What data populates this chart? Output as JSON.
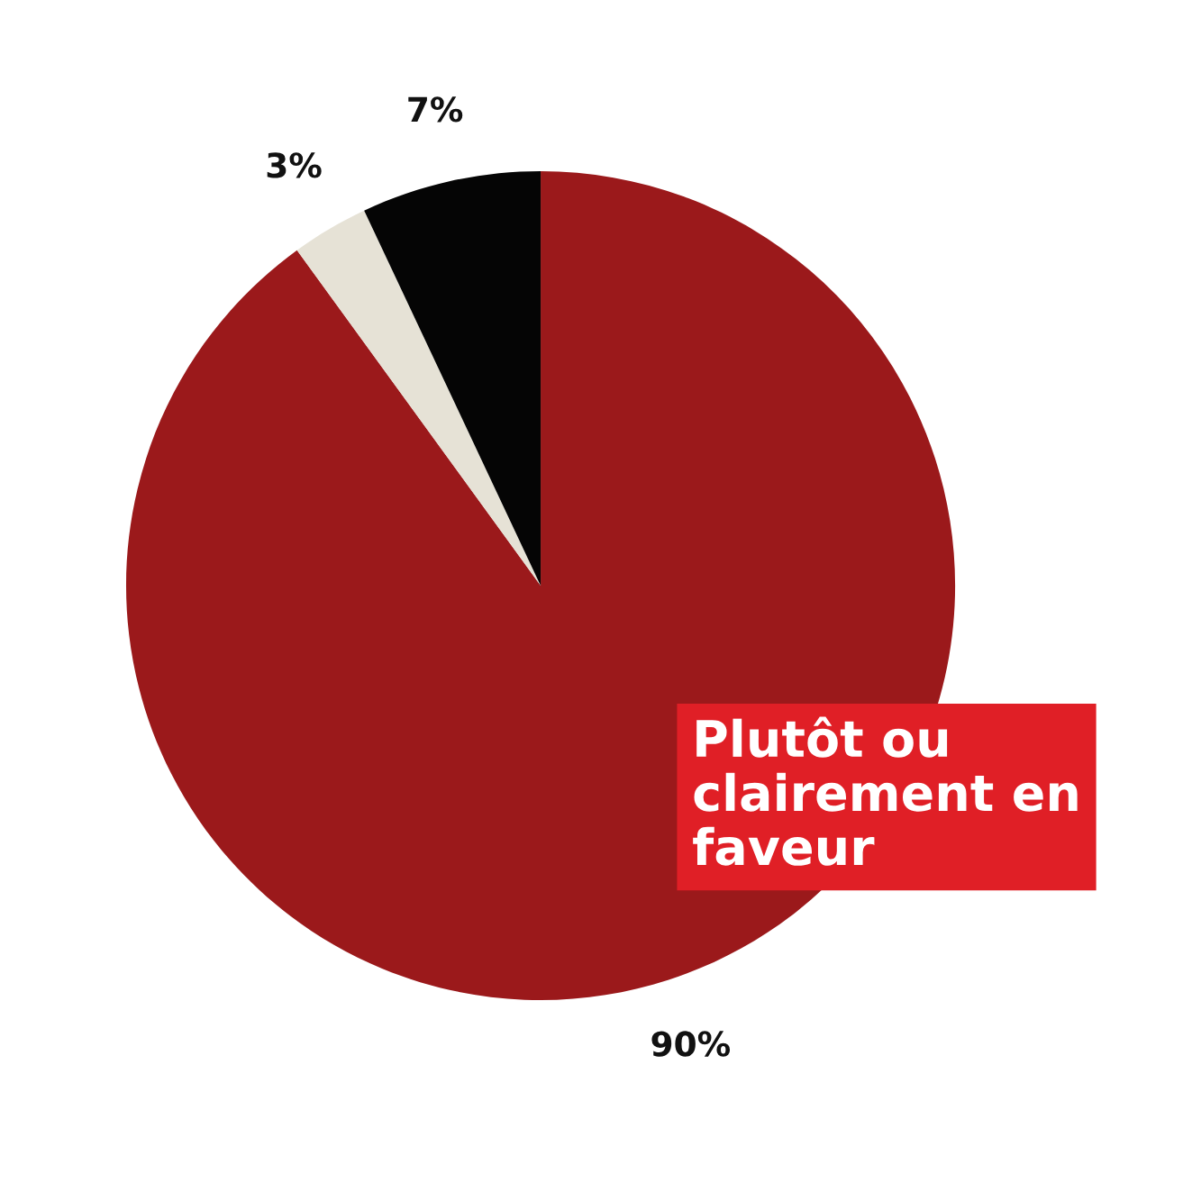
{
  "chart_data": {
    "type": "pie",
    "categories": [
      "Plutôt ou clairement en faveur",
      null,
      null
    ],
    "values": [
      90,
      3,
      7
    ],
    "colors": [
      "#9b191b",
      "#e6e2d6",
      "#050505"
    ],
    "value_labels": [
      "90%",
      "3%",
      "7%"
    ],
    "legend": false
  }
}
